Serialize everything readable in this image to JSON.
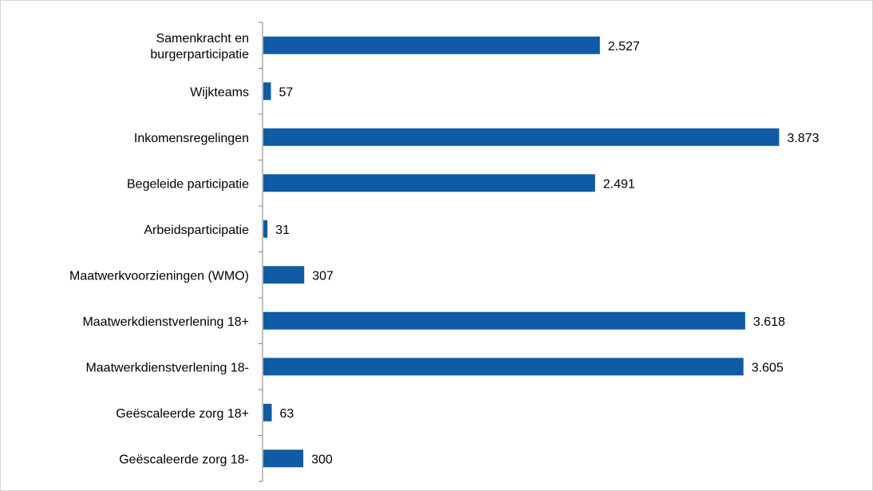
{
  "colors": {
    "bar": "#0f5ba5",
    "axis": "#808080",
    "text": "#000000"
  },
  "chart_data": {
    "type": "bar",
    "orientation": "horizontal",
    "categories": [
      "Samenkracht en burgerparticipatie",
      "Wijkteams",
      "Inkomensregelingen",
      "Begeleide participatie",
      "Arbeidsparticipatie",
      "Maatwerkvoorzieningen (WMO)",
      "Maatwerkdienstverlening 18+",
      "Maatwerkdienstverlening 18-",
      "Geëscaleerde zorg 18+",
      "Geëscaleerde zorg 18-"
    ],
    "category_lines": [
      [
        "Samenkracht en",
        "burgerparticipatie"
      ],
      [
        "Wijkteams"
      ],
      [
        "Inkomensregelingen"
      ],
      [
        "Begeleide participatie"
      ],
      [
        "Arbeidsparticipatie"
      ],
      [
        "Maatwerkvoorzieningen (WMO)"
      ],
      [
        "Maatwerkdienstverlening 18+"
      ],
      [
        "Maatwerkdienstverlening 18-"
      ],
      [
        "Geëscaleerde zorg 18+"
      ],
      [
        "Geëscaleerde zorg 18-"
      ]
    ],
    "values": [
      2527,
      57,
      3873,
      2491,
      31,
      307,
      3618,
      3605,
      63,
      300
    ],
    "value_labels": [
      "2.527",
      "57",
      "3.873",
      "2.491",
      "31",
      "307",
      "3.618",
      "3.605",
      "63",
      "300"
    ],
    "xlim": [
      0,
      4200
    ],
    "grid": false,
    "legend": "none",
    "title": "",
    "xlabel": "",
    "ylabel": ""
  }
}
